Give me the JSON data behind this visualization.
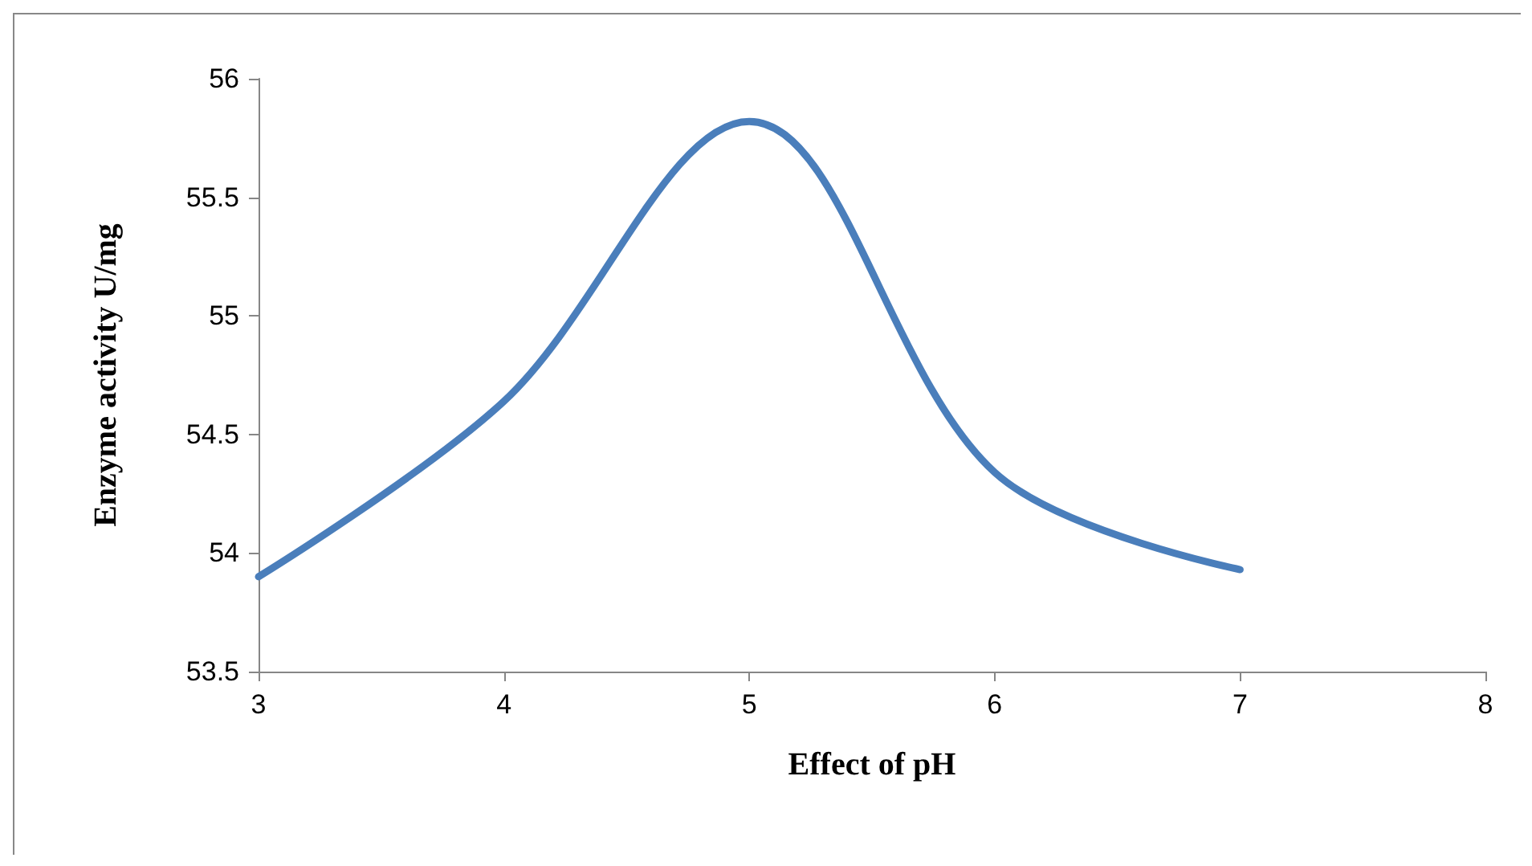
{
  "chart_data": {
    "type": "line",
    "xlabel": "Effect of pH",
    "ylabel": "Enzyme activity U/mg",
    "x": [
      3,
      4,
      5,
      6,
      7
    ],
    "series": [
      {
        "color": "#4a7ebb",
        "values": [
          53.9,
          54.64,
          55.82,
          54.34,
          53.93
        ]
      }
    ],
    "xlim": [
      3,
      8
    ],
    "xticks": [
      3,
      4,
      5,
      6,
      7,
      8
    ],
    "ylim": [
      53.5,
      56
    ],
    "yticks": [
      53.5,
      54,
      54.5,
      55,
      55.5,
      56
    ],
    "grid": false,
    "marker": "none",
    "line_style": "solid"
  }
}
